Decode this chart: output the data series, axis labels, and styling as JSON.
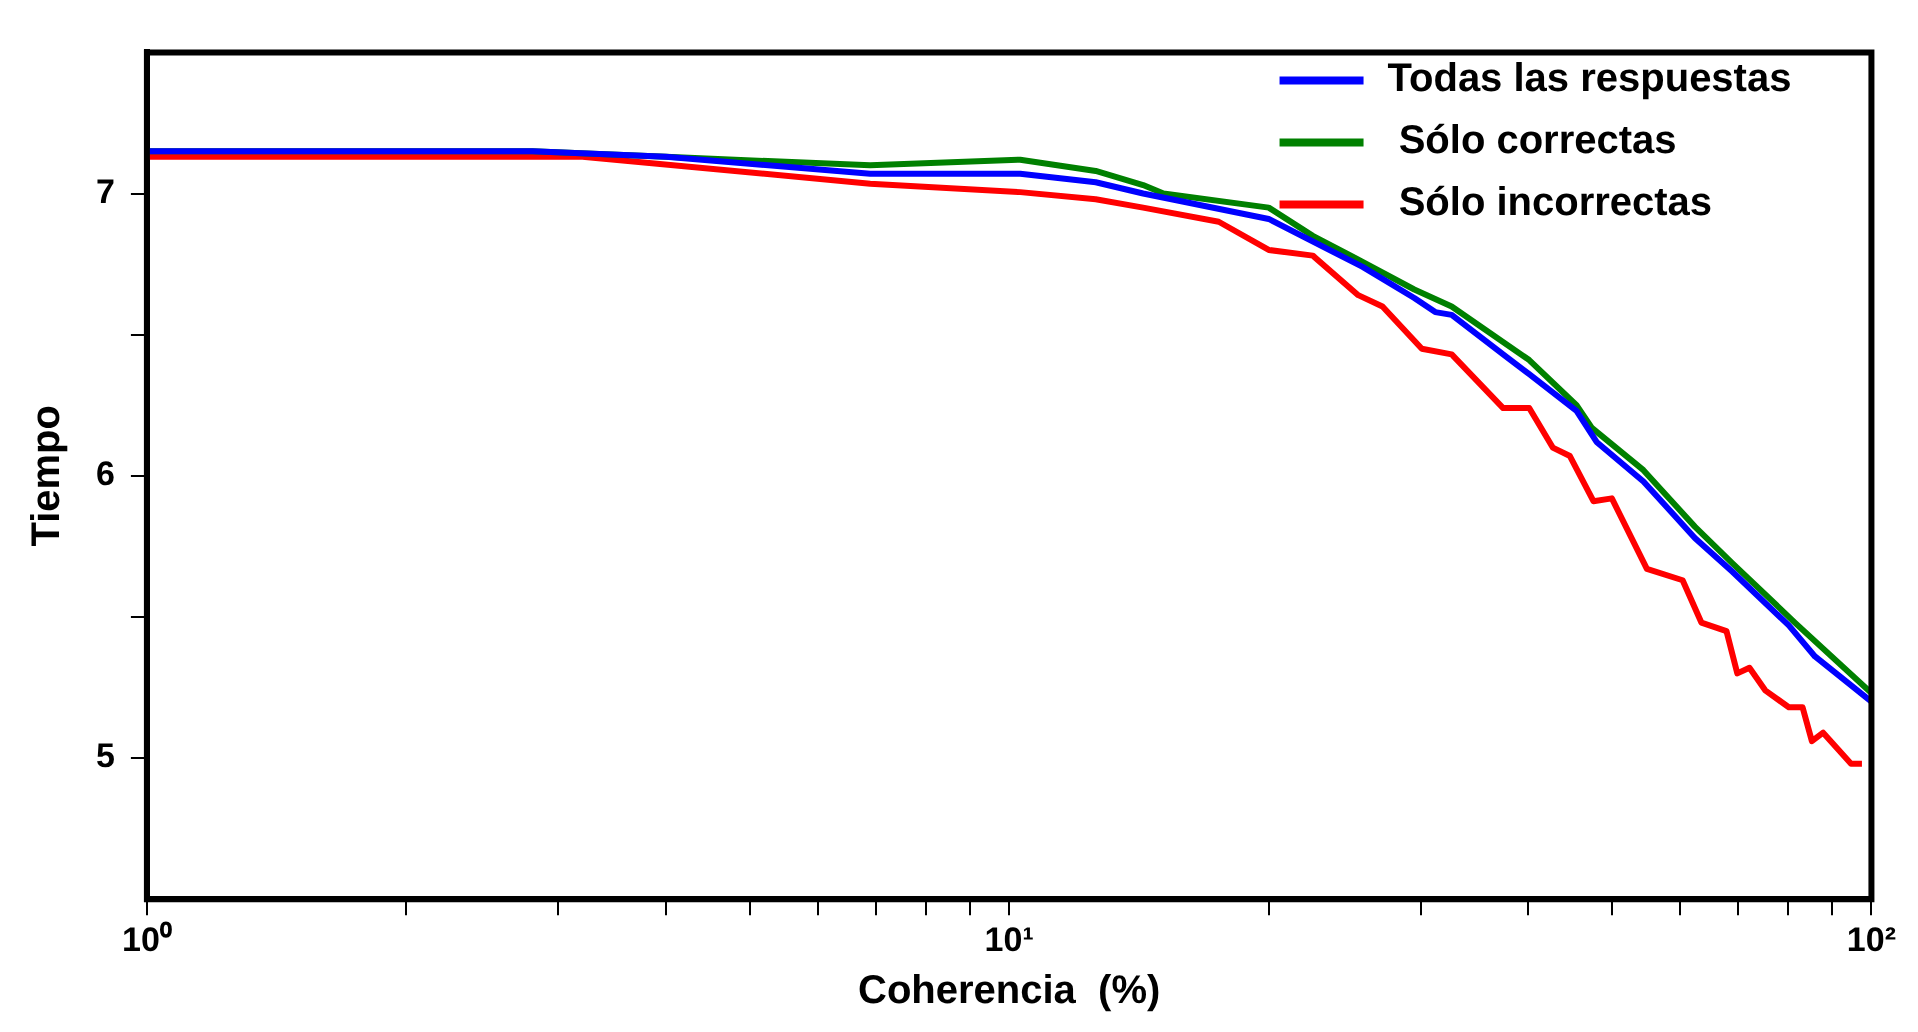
{
  "chart_data": {
    "type": "line",
    "xlabel": "Coherencia  (%)",
    "ylabel": "Tiempo",
    "log": "x",
    "xlim": [
      1,
      100
    ],
    "ylim": [
      4.5,
      7.5
    ],
    "xticks": [
      {
        "value": 1,
        "label": "10⁰"
      },
      {
        "value": 2,
        "label": null
      },
      {
        "value": 3,
        "label": null
      },
      {
        "value": 4,
        "label": null
      },
      {
        "value": 5,
        "label": null
      },
      {
        "value": 6,
        "label": null
      },
      {
        "value": 7,
        "label": null
      },
      {
        "value": 8,
        "label": null
      },
      {
        "value": 9,
        "label": null
      },
      {
        "value": 10,
        "label": "10¹"
      },
      {
        "value": 20,
        "label": null
      },
      {
        "value": 30,
        "label": null
      },
      {
        "value": 40,
        "label": null
      },
      {
        "value": 50,
        "label": null
      },
      {
        "value": 60,
        "label": null
      },
      {
        "value": 70,
        "label": null
      },
      {
        "value": 80,
        "label": null
      },
      {
        "value": 90,
        "label": null
      },
      {
        "value": 100,
        "label": "10²"
      }
    ],
    "yticks": [
      {
        "value": 5,
        "label": "5"
      },
      {
        "value": 5.5,
        "label": null
      },
      {
        "value": 6,
        "label": "6"
      },
      {
        "value": 6.5,
        "label": null
      },
      {
        "value": 7,
        "label": "7"
      }
    ],
    "grid": false,
    "legend": "top right",
    "marker": "none",
    "line_style": "solid",
    "series": [
      {
        "name": "Todas las respuestas",
        "color": "#0000ff",
        "x": [
          1,
          2.8,
          4.0,
          6.9,
          10.3,
          12.6,
          14.3,
          20.0,
          25.7,
          29.5,
          31.2,
          32.6,
          37.4,
          40.1,
          45.5,
          48.0,
          54.4,
          62.4,
          69.0,
          80.2,
          86.0,
          100
        ],
        "values": [
          7.15,
          7.15,
          7.13,
          7.07,
          7.07,
          7.04,
          7.0,
          6.91,
          6.74,
          6.63,
          6.58,
          6.57,
          6.43,
          6.36,
          6.23,
          6.12,
          5.98,
          5.78,
          5.66,
          5.47,
          5.36,
          5.2
        ]
      },
      {
        "name": " Sólo correctas",
        "color": "#008000",
        "x": [
          1,
          2.8,
          4.0,
          6.9,
          10.3,
          12.6,
          14.3,
          15.1,
          20.0,
          22.5,
          24.9,
          29.5,
          32.6,
          40.1,
          45.5,
          47.4,
          54.4,
          62.4,
          69.0,
          81.5,
          100
        ],
        "values": [
          7.15,
          7.15,
          7.13,
          7.1,
          7.12,
          7.08,
          7.03,
          7.0,
          6.95,
          6.85,
          6.78,
          6.66,
          6.6,
          6.41,
          6.25,
          6.17,
          6.02,
          5.82,
          5.69,
          5.48,
          5.23
        ]
      },
      {
        "name": " Sólo incorrectas",
        "color": "#ff0000",
        "x": [
          1,
          3.2,
          6.9,
          10.3,
          12.6,
          14.3,
          17.5,
          20.0,
          22.5,
          25.4,
          27.1,
          30.1,
          32.6,
          37.4,
          40.1,
          42.7,
          44.7,
          47.6,
          50.0,
          54.9,
          60.4,
          63.5,
          67.9,
          69.9,
          72.2,
          75.3,
          80.2,
          83.2,
          85.3,
          87.9,
          94.7,
          97.5
        ],
        "values": [
          7.13,
          7.13,
          7.035,
          7.005,
          6.98,
          6.95,
          6.9,
          6.8,
          6.78,
          6.64,
          6.6,
          6.45,
          6.43,
          6.24,
          6.24,
          6.1,
          6.07,
          5.91,
          5.92,
          5.67,
          5.63,
          5.48,
          5.45,
          5.3,
          5.32,
          5.24,
          5.18,
          5.18,
          5.06,
          5.09,
          4.98,
          4.98
        ]
      }
    ]
  }
}
